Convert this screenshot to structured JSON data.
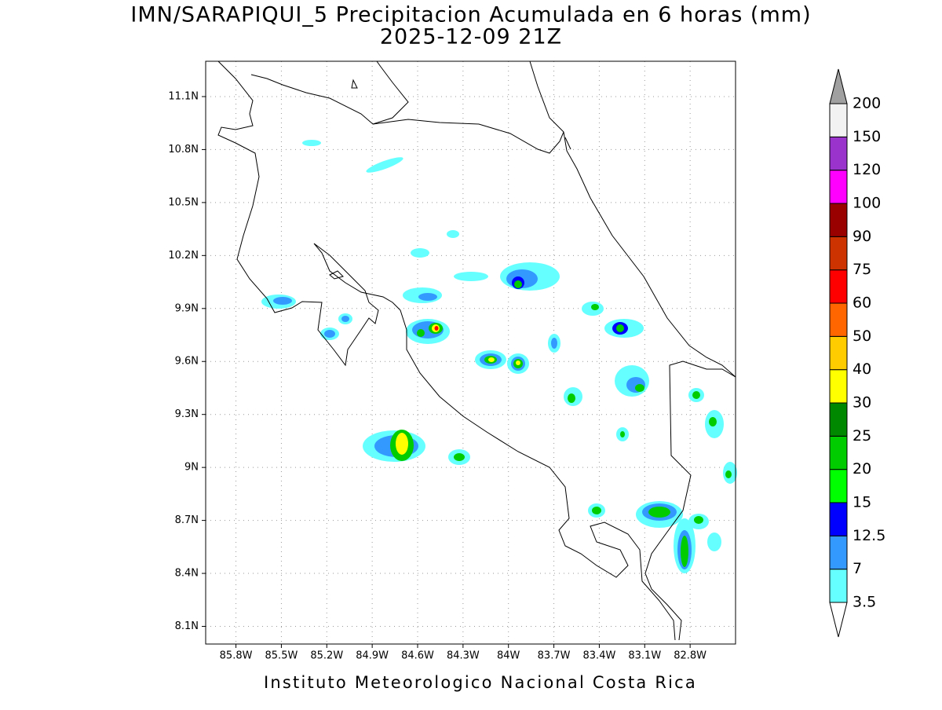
{
  "title": "IMN/SARAPIQUI_5 Precipitacion Acumulada en 6 horas (mm)",
  "subtitle": "2025-12-09 21Z",
  "map": {
    "xlim": [
      -86.0,
      -82.5
    ],
    "ylim": [
      8.0,
      11.3
    ],
    "grid": true,
    "xticks": [
      {
        "value": -85.8,
        "label": "85.8W"
      },
      {
        "value": -85.5,
        "label": "85.5W"
      },
      {
        "value": -85.2,
        "label": "85.2W"
      },
      {
        "value": -84.9,
        "label": "84.9W"
      },
      {
        "value": -84.6,
        "label": "84.6W"
      },
      {
        "value": -84.3,
        "label": "84.3W"
      },
      {
        "value": -84.0,
        "label": "84W"
      },
      {
        "value": -83.7,
        "label": "83.7W"
      },
      {
        "value": -83.4,
        "label": "83.4W"
      },
      {
        "value": -83.1,
        "label": "83.1W"
      },
      {
        "value": -82.8,
        "label": "82.8W"
      }
    ],
    "yticks": [
      {
        "value": 8.1,
        "label": "8.1N"
      },
      {
        "value": 8.4,
        "label": "8.4N"
      },
      {
        "value": 8.7,
        "label": "8.7N"
      },
      {
        "value": 9.0,
        "label": "9N"
      },
      {
        "value": 9.3,
        "label": "9.3N"
      },
      {
        "value": 9.6,
        "label": "9.6N"
      },
      {
        "value": 9.9,
        "label": "9.9N"
      },
      {
        "value": 10.2,
        "label": "10.2N"
      },
      {
        "value": 10.5,
        "label": "10.5N"
      },
      {
        "value": 10.8,
        "label": "10.8N"
      },
      {
        "value": 11.1,
        "label": "11.1N"
      }
    ]
  },
  "colorbar": {
    "levels": [
      3.5,
      7,
      12.5,
      15,
      20,
      25,
      30,
      40,
      50,
      60,
      75,
      90,
      100,
      120,
      150,
      200
    ],
    "colors": [
      "#66ffff",
      "#3399ff",
      "#0000ff",
      "#00ff00",
      "#00cc00",
      "#008800",
      "#ffff00",
      "#ffcc00",
      "#ff6600",
      "#ff0000",
      "#cc3300",
      "#990000",
      "#ff00ff",
      "#9933cc",
      "#f2f2f2"
    ],
    "under_color": "#ffffff",
    "over_color": "#a0a0a0"
  },
  "footer": "Instituto Meteorologico Nacional Costa Rica"
}
